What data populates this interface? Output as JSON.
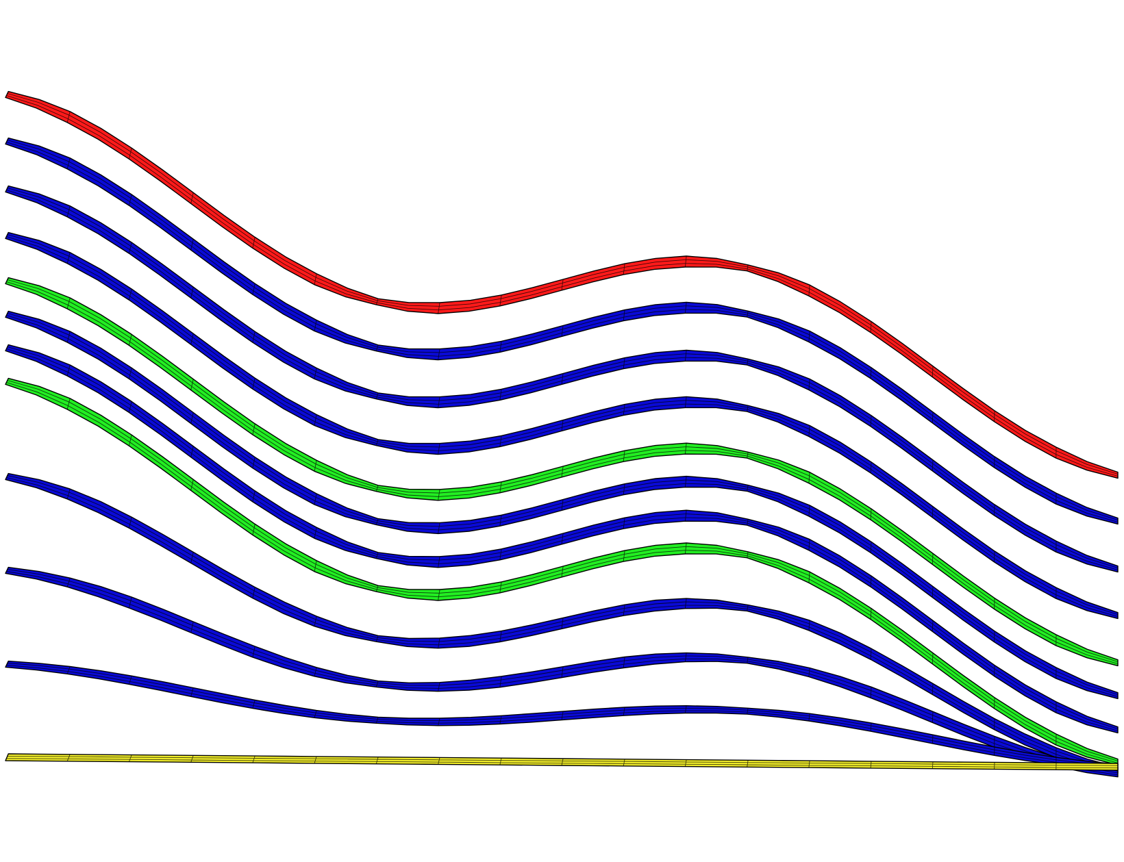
{
  "colors": {
    "background": "#ffffff",
    "mesh_lines": "#000000"
  },
  "bands": [
    {
      "id": "band-1",
      "color": "#ff1a1a",
      "amplitude": 1.0
    },
    {
      "id": "band-2",
      "color": "#0a0ad6",
      "amplitude": 1.0
    },
    {
      "id": "band-3",
      "color": "#0a0ad6",
      "amplitude": 1.0
    },
    {
      "id": "band-4",
      "color": "#0a0ad6",
      "amplitude": 1.0
    },
    {
      "id": "band-5",
      "color": "#22ee22",
      "amplitude": 1.0
    },
    {
      "id": "band-6",
      "color": "#0a0ad6",
      "amplitude": 1.0
    },
    {
      "id": "band-7",
      "color": "#0a0ad6",
      "amplitude": 1.0
    },
    {
      "id": "band-8",
      "color": "#22ee22",
      "amplitude": 1.0
    },
    {
      "id": "band-9",
      "color": "#0a0ad6",
      "amplitude": 0.8
    },
    {
      "id": "band-10",
      "color": "#0a0ad6",
      "amplitude": 0.57
    },
    {
      "id": "band-11",
      "color": "#0a0ad6",
      "amplitude": 0.27
    },
    {
      "id": "band-12",
      "color": "#f2ee2a",
      "amplitude": 0.0
    }
  ]
}
